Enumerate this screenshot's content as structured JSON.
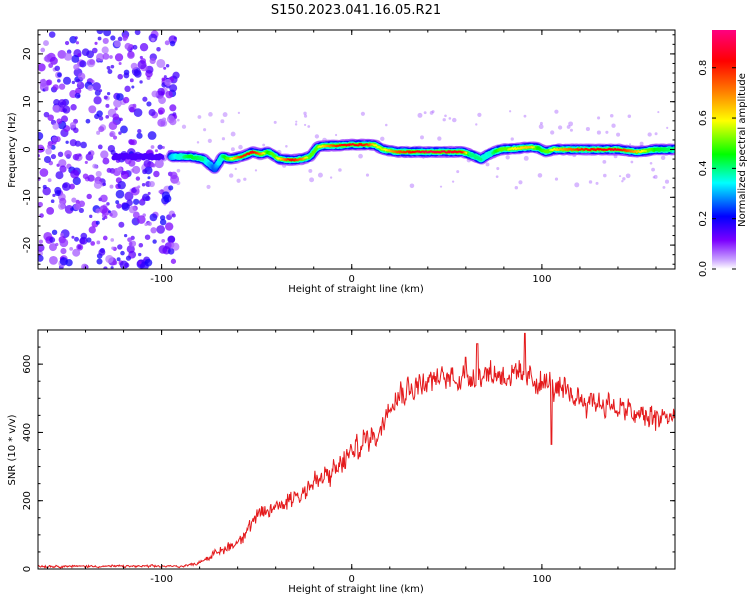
{
  "title": "S150.2023.041.16.05.R21",
  "chart_data": [
    {
      "type": "heatmap",
      "name": "spectrogram",
      "xlabel": "Height of straight line (km)",
      "ylabel": "Frequency (Hz)",
      "xlim": [
        -165,
        170
      ],
      "ylim": [
        -25,
        25
      ],
      "xticks": [
        -100,
        0,
        100
      ],
      "yticks": [
        -20,
        -10,
        0,
        10,
        20
      ],
      "colorbar": {
        "label": "Normalized spectral amplitude",
        "range": [
          0,
          0.95
        ],
        "ticks": [
          "0.0",
          "0.2",
          "0.4",
          "0.6",
          "0.8"
        ],
        "tick_values": [
          0.0,
          0.2,
          0.4,
          0.6,
          0.8
        ],
        "colors": [
          "#ffffff",
          "#7b00ff",
          "#0000ff",
          "#00ffff",
          "#00ff00",
          "#ffff00",
          "#ff8000",
          "#ff0000",
          "#ff0080"
        ]
      },
      "ridge": {
        "x": [
          -95,
          -85,
          -78,
          -72,
          -68,
          -64,
          -58,
          -52,
          -48,
          -44,
          -38,
          -32,
          -26,
          -22,
          -18,
          -14,
          -8,
          0,
          8,
          12,
          16,
          24,
          40,
          58,
          62,
          68,
          72,
          78,
          86,
          94,
          98,
          102,
          106,
          120,
          140,
          150,
          160,
          170
        ],
        "freq": [
          -1.5,
          -1.5,
          -2,
          -4,
          -1.5,
          -2,
          -1.5,
          -0.5,
          -1,
          -0.5,
          -2,
          -2.2,
          -2,
          -1.5,
          0.5,
          0.8,
          0.8,
          1,
          1,
          1,
          0,
          -0.5,
          -0.5,
          -0.5,
          -1,
          -2,
          -1,
          0,
          0.2,
          0.5,
          0.3,
          -0.5,
          0,
          0,
          0,
          -0.5,
          0,
          0
        ],
        "amp": [
          0.3,
          0.45,
          0.4,
          0.25,
          0.4,
          0.55,
          0.8,
          0.85,
          0.7,
          0.45,
          0.6,
          0.85,
          0.7,
          0.5,
          0.55,
          0.65,
          0.8,
          0.85,
          0.8,
          0.6,
          0.55,
          0.75,
          0.9,
          0.85,
          0.4,
          0.4,
          0.35,
          0.5,
          0.6,
          0.65,
          0.45,
          0.5,
          0.6,
          0.8,
          0.85,
          0.65,
          0.45,
          0.4
        ]
      },
      "weak_band": {
        "x": [
          -125,
          -100
        ],
        "freq": -1.5,
        "amp": 0.15
      },
      "noise_region": {
        "x": [
          -165,
          -92
        ],
        "freq": [
          -25,
          25
        ],
        "amp_range": [
          0.05,
          0.2
        ]
      }
    },
    {
      "type": "line",
      "name": "snr",
      "xlabel": "Height of straight line (km)",
      "ylabel": "SNR (10 * v/v)",
      "xlim": [
        -165,
        170
      ],
      "ylim": [
        0,
        700
      ],
      "xticks": [
        -100,
        0,
        100
      ],
      "yticks": [
        0,
        200,
        400,
        600
      ],
      "color": "#e41a1c",
      "trend": {
        "x": [
          -165,
          -90,
          -82,
          -75,
          -60,
          -50,
          -40,
          -30,
          -20,
          -10,
          0,
          10,
          15,
          20,
          30,
          40,
          50,
          60,
          70,
          80,
          90,
          100,
          110,
          120,
          130,
          140,
          150,
          160,
          170
        ],
        "y": [
          8,
          8,
          15,
          35,
          80,
          150,
          180,
          215,
          250,
          280,
          340,
          390,
          400,
          500,
          530,
          550,
          560,
          565,
          575,
          570,
          560,
          550,
          520,
          500,
          490,
          470,
          450,
          440,
          450
        ]
      },
      "spikes": [
        {
          "x": 91,
          "y": 690
        },
        {
          "x": 66,
          "y": 660
        },
        {
          "x": 105,
          "y": 365
        },
        {
          "x": 60,
          "y": 620
        }
      ]
    }
  ]
}
